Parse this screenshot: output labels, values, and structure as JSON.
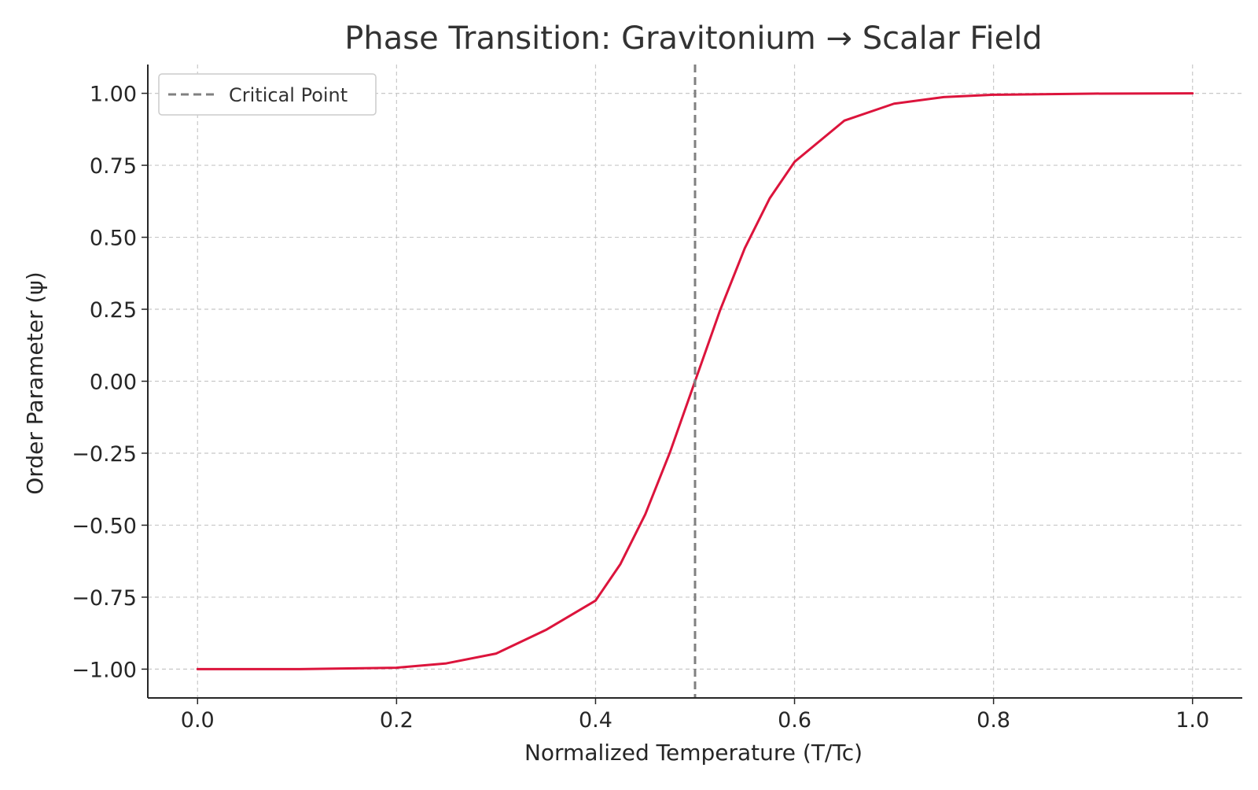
{
  "chart_data": {
    "type": "line",
    "title": "Phase Transition: Gravitonium → Scalar Field",
    "xlabel": "Normalized Temperature (T/Tc)",
    "ylabel": "Order Parameter (ψ)",
    "xlim": [
      -0.05,
      1.05
    ],
    "ylim": [
      -1.1,
      1.1
    ],
    "x_ticks": [
      0.0,
      0.2,
      0.4,
      0.6,
      0.8,
      1.0
    ],
    "x_tick_labels": [
      "0.0",
      "0.2",
      "0.4",
      "0.6",
      "0.8",
      "1.0"
    ],
    "y_ticks": [
      -1.0,
      -0.75,
      -0.5,
      -0.25,
      0.0,
      0.25,
      0.5,
      0.75,
      1.0
    ],
    "y_tick_labels": [
      "−1.00",
      "−0.75",
      "−0.50",
      "−0.25",
      "0.00",
      "0.25",
      "0.50",
      "0.75",
      "1.00"
    ],
    "grid": true,
    "legend_position": "top-left",
    "series": [
      {
        "color": "#dc143c",
        "x": [
          0.0,
          0.1,
          0.2,
          0.25,
          0.3,
          0.35,
          0.4,
          0.425,
          0.45,
          0.475,
          0.5,
          0.525,
          0.55,
          0.575,
          0.6,
          0.65,
          0.7,
          0.75,
          0.8,
          0.9,
          1.0
        ],
        "y": [
          -1.0,
          -1.0,
          -0.995,
          -0.98,
          -0.946,
          -0.864,
          -0.762,
          -0.635,
          -0.462,
          -0.245,
          0.0,
          0.245,
          0.462,
          0.635,
          0.762,
          0.905,
          0.964,
          0.987,
          0.995,
          0.999,
          1.0
        ]
      }
    ],
    "annotations": [
      {
        "type": "vline",
        "x": 0.5,
        "label": "Critical Point",
        "color": "#808080",
        "style": "dashed"
      }
    ]
  }
}
